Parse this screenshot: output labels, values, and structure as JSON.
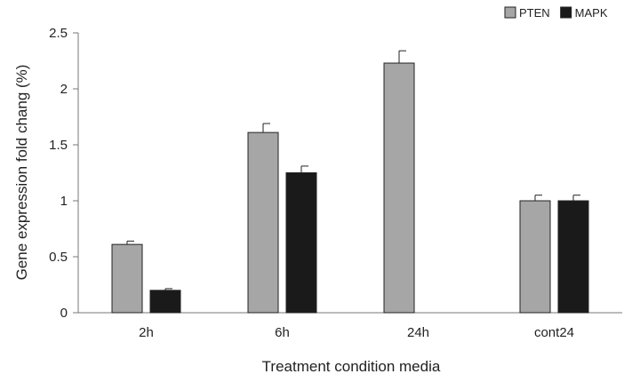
{
  "chart_data": {
    "type": "bar",
    "categories": [
      "2h",
      "6h",
      "24h",
      "cont24"
    ],
    "series": [
      {
        "name": "PTEN",
        "values": [
          0.61,
          1.61,
          2.23,
          1.0
        ],
        "errors": [
          0.03,
          0.08,
          0.11,
          0.05
        ],
        "color": "#a6a6a6"
      },
      {
        "name": "MAPK",
        "values": [
          0.2,
          1.25,
          null,
          1.0
        ],
        "errors": [
          0.015,
          0.06,
          null,
          0.05
        ],
        "color": "#1a1a1a"
      }
    ],
    "xlabel": "Treatment condition media",
    "ylabel": "Gene expression fold chang (%)",
    "ylim": [
      0,
      2.5
    ],
    "yticks": [
      0,
      0.5,
      1,
      1.5,
      2,
      2.5
    ],
    "ytick_labels": [
      "0",
      "0.5",
      "1",
      "1.5",
      "2",
      "2.5"
    ],
    "grid": false,
    "legend_position": "top-right"
  }
}
